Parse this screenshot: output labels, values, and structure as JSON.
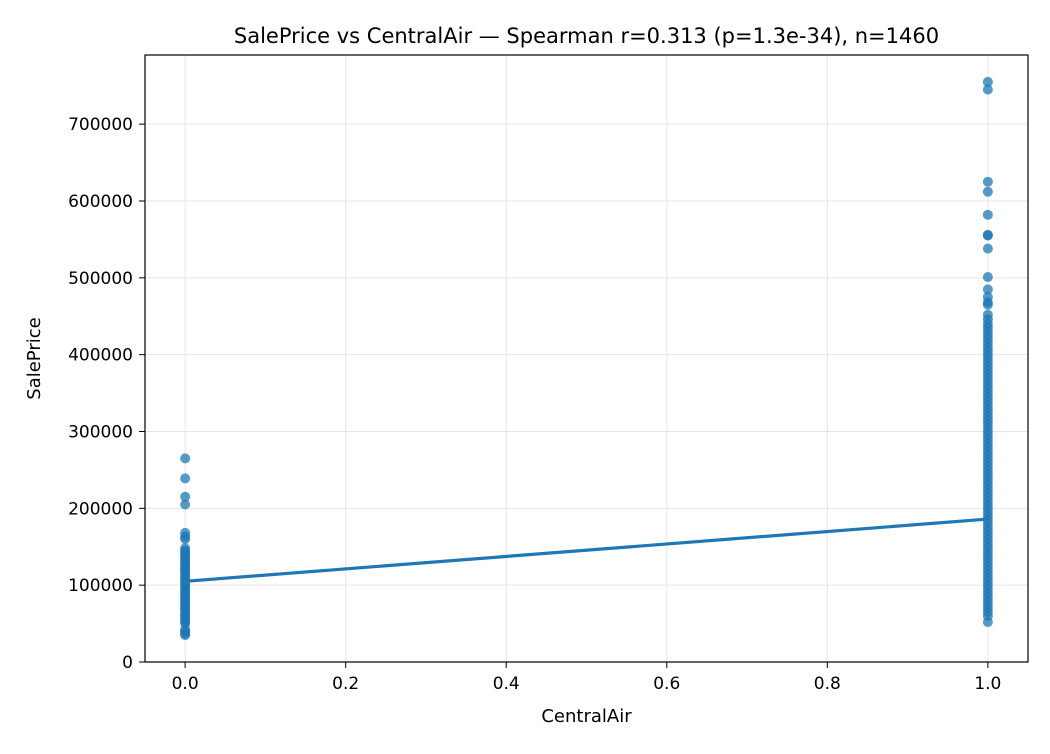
{
  "chart_data": {
    "type": "scatter",
    "title": "SalePrice vs CentralAir — Spearman r=0.313 (p=1.3e-34), n=1460",
    "xlabel": "CentralAir",
    "ylabel": "SalePrice",
    "xlim": [
      -0.05,
      1.05
    ],
    "ylim": [
      0,
      790000
    ],
    "xticks": [
      0.0,
      0.2,
      0.4,
      0.6,
      0.8,
      1.0
    ],
    "xtick_labels": [
      "0.0",
      "0.2",
      "0.4",
      "0.6",
      "0.8",
      "1.0"
    ],
    "yticks": [
      0,
      100000,
      200000,
      300000,
      400000,
      500000,
      600000,
      700000
    ],
    "ytick_labels": [
      "0",
      "100000",
      "200000",
      "300000",
      "400000",
      "500000",
      "600000",
      "700000"
    ],
    "grid": true,
    "colors": {
      "points": "#1f77b4",
      "fit_line": "#1f77b4",
      "grid": "#e6e6e6"
    },
    "series": [
      {
        "x": 0,
        "values": [
          265000,
          239000,
          215000,
          205000,
          168000,
          163000,
          160000,
          148000,
          145000,
          143000,
          140000,
          138000,
          135000,
          132000,
          130000,
          128000,
          125000,
          122000,
          120000,
          118000,
          115000,
          112000,
          110000,
          108000,
          105000,
          102000,
          100000,
          98000,
          95000,
          92000,
          90000,
          88000,
          85000,
          82000,
          80000,
          78000,
          75000,
          72000,
          70000,
          68000,
          65000,
          62000,
          60000,
          57000,
          55000,
          52000,
          50000,
          42000,
          40000,
          37000,
          35000
        ]
      },
      {
        "x": 1,
        "values": [
          755000,
          745000,
          625000,
          612000,
          582000,
          556000,
          555000,
          538000,
          501000,
          485000,
          475000,
          468000,
          465000,
          452000,
          446000,
          440000,
          435000,
          430000,
          425000,
          420000,
          415000,
          410000,
          405000,
          400000,
          395000,
          390000,
          385000,
          380000,
          375000,
          370000,
          365000,
          360000,
          355000,
          350000,
          345000,
          340000,
          335000,
          330000,
          325000,
          320000,
          315000,
          310000,
          305000,
          300000,
          295000,
          290000,
          285000,
          280000,
          275000,
          270000,
          265000,
          260000,
          255000,
          250000,
          245000,
          240000,
          235000,
          230000,
          225000,
          220000,
          215000,
          210000,
          205000,
          200000,
          195000,
          190000,
          185000,
          180000,
          175000,
          170000,
          165000,
          160000,
          155000,
          150000,
          145000,
          140000,
          135000,
          130000,
          125000,
          120000,
          115000,
          110000,
          105000,
          100000,
          95000,
          90000,
          85000,
          80000,
          75000,
          70000,
          65000,
          60000,
          52000
        ]
      }
    ],
    "fit_line": {
      "x": [
        0,
        1
      ],
      "y": [
        105000,
        186000
      ]
    }
  }
}
